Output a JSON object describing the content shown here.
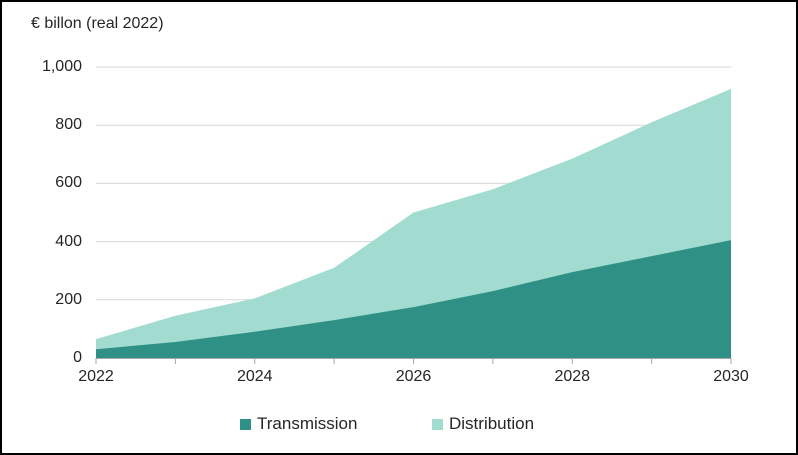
{
  "frame": {
    "background": "#ffffff",
    "border_color": "#000000"
  },
  "chart_data": {
    "type": "area",
    "stacked": true,
    "title": "€ billon (real 2022)",
    "x": [
      2022,
      2023,
      2024,
      2025,
      2026,
      2027,
      2028,
      2029,
      2030
    ],
    "series": [
      {
        "name": "Transmission",
        "color": "#2F9185",
        "values": [
          30,
          55,
          90,
          130,
          175,
          230,
          295,
          350,
          405
        ]
      },
      {
        "name": "Distribution",
        "color": "#A2DBCF",
        "values": [
          35,
          90,
          115,
          180,
          325,
          350,
          390,
          460,
          520
        ]
      }
    ],
    "stacked_totals": [
      65,
      145,
      205,
      310,
      500,
      580,
      685,
      810,
      925
    ],
    "xlabel": "",
    "ylabel": "€ billon (real 2022)",
    "ylim": [
      0,
      1000
    ],
    "y_ticks": [
      0,
      200,
      400,
      600,
      800,
      1000
    ],
    "y_tick_labels": [
      "0",
      "200",
      "400",
      "600",
      "800",
      "1,000"
    ],
    "x_minor_tick_years": [
      2022,
      2023,
      2024,
      2025,
      2026,
      2027,
      2028,
      2029,
      2030
    ],
    "x_tick_years": [
      2022,
      2024,
      2026,
      2028,
      2030
    ],
    "x_tick_labels": [
      "2022",
      "2024",
      "2026",
      "2028",
      "2030"
    ],
    "grid": "horizontal",
    "gridline_color": "#d9d9d9",
    "axis_color": "#a6a6a6",
    "text_color": "#262626",
    "legend_position": "bottom-center"
  }
}
